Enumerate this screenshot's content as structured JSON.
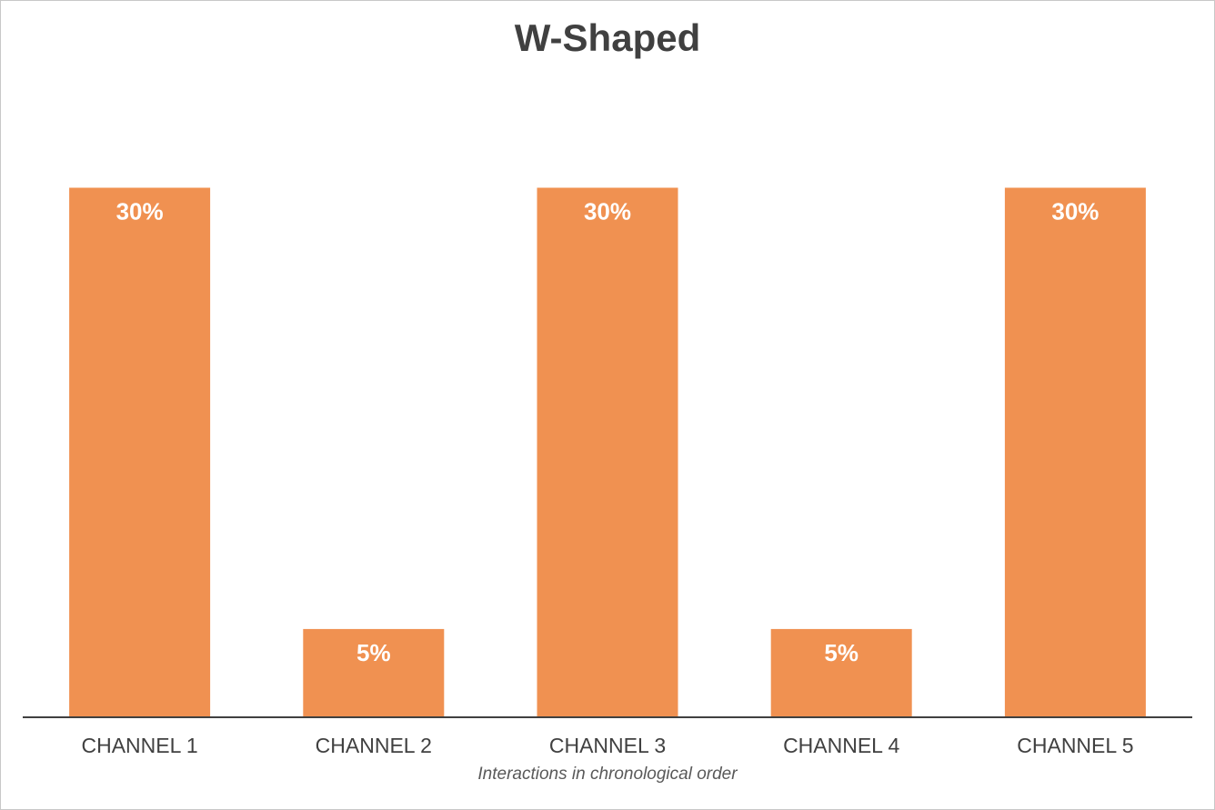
{
  "chart_data": {
    "type": "bar",
    "title": "W-Shaped",
    "xlabel": "Interactions in chronological order",
    "ylabel": "",
    "categories": [
      "CHANNEL 1",
      "CHANNEL 2",
      "CHANNEL 3",
      "CHANNEL 4",
      "CHANNEL 5"
    ],
    "values": [
      30,
      5,
      30,
      5,
      30
    ],
    "data_labels": [
      "30%",
      "5%",
      "30%",
      "5%",
      "30%"
    ],
    "ylim": [
      0,
      36
    ],
    "grid": false,
    "legend": "none",
    "colors": {
      "bar": "#F09151",
      "axis": "#404040",
      "data_label": "#ffffff",
      "tick_label": "#404040"
    }
  }
}
